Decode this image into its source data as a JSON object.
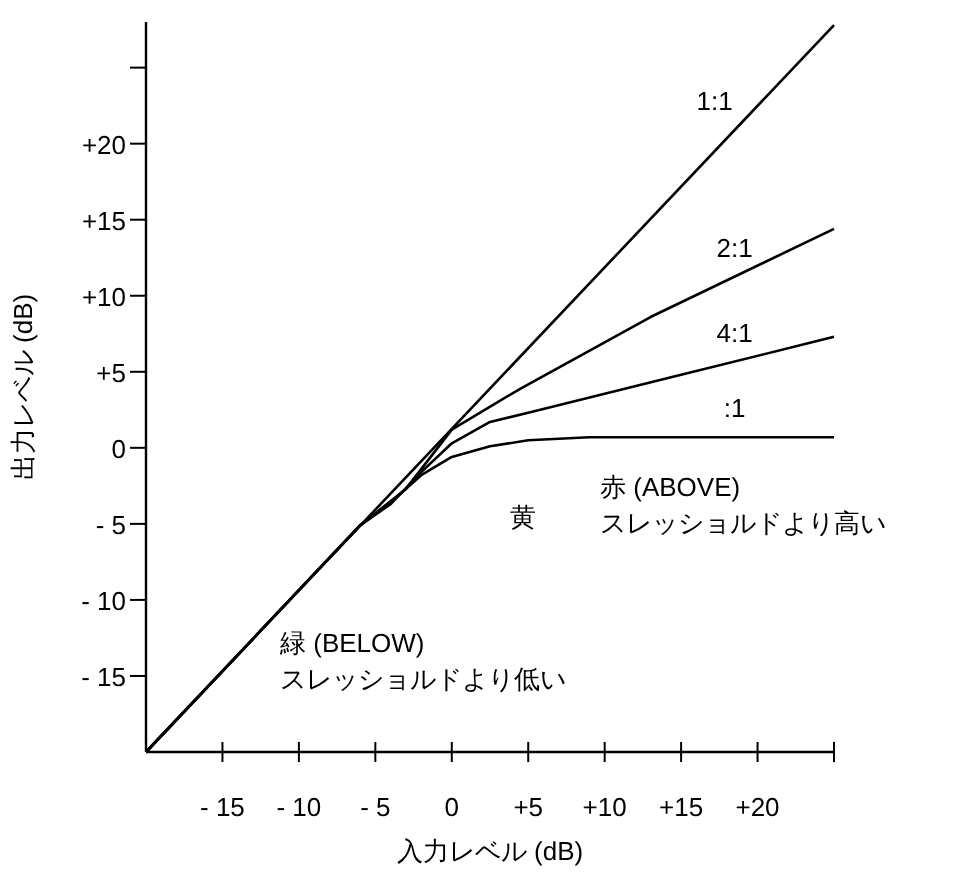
{
  "chart_data": {
    "type": "line",
    "xlabel": "入力レベル (dB)",
    "ylabel": "出力レベル (dB)",
    "xlim": [
      -20,
      25
    ],
    "ylim": [
      -20,
      28
    ],
    "xticks": [
      {
        "value": -15,
        "label": "- 15"
      },
      {
        "value": -10,
        "label": "- 10"
      },
      {
        "value": -5,
        "label": "- 5"
      },
      0,
      {
        "value": 5,
        "label": "+5"
      },
      {
        "value": 10,
        "label": "+10"
      },
      {
        "value": 15,
        "label": "+15"
      },
      {
        "value": 20,
        "label": "+20"
      },
      {
        "value": 25,
        "label": null
      }
    ],
    "yticks": [
      {
        "value": -15,
        "label": "- 15"
      },
      {
        "value": -10,
        "label": "- 10"
      },
      {
        "value": -5,
        "label": "- 5"
      },
      0,
      {
        "value": 5,
        "label": "+5"
      },
      {
        "value": 10,
        "label": "+10"
      },
      {
        "value": 15,
        "label": "+15"
      },
      {
        "value": 20,
        "label": "+20"
      },
      {
        "value": 25,
        "label": null
      }
    ],
    "series": [
      {
        "name": "1:1",
        "color": "#000000",
        "x": [
          -20,
          25
        ],
        "values": [
          -20,
          27.8
        ]
      },
      {
        "name": "2:1",
        "color": "#000000",
        "x": [
          -20,
          -6,
          -3,
          0,
          4.5,
          13,
          25
        ],
        "values": [
          -20,
          -5.1,
          -2.7,
          1.2,
          3.9,
          8.6,
          14.4
        ]
      },
      {
        "name": "4:1",
        "color": "#000000",
        "x": [
          -20,
          -6,
          -4,
          -2,
          0,
          2.5,
          5,
          15,
          25
        ],
        "values": [
          -20,
          -5.1,
          -3.7,
          -1.6,
          0.3,
          1.7,
          2.3,
          4.8,
          7.3
        ]
      },
      {
        "name": ":1",
        "color": "#000000",
        "x": [
          -20,
          -6,
          -4,
          -2,
          0,
          2.5,
          5,
          9,
          25
        ],
        "values": [
          -20,
          -5.1,
          -3.6,
          -1.8,
          -0.6,
          0.1,
          0.5,
          0.7,
          0.7
        ]
      }
    ],
    "annotations": [
      "黄",
      "赤 (ABOVE)\nスレッショルドより高い",
      "緑 (BELOW)\nスレッショルドより低い"
    ],
    "grid": false,
    "legend": false,
    "marker": "none",
    "line_style": "solid"
  }
}
